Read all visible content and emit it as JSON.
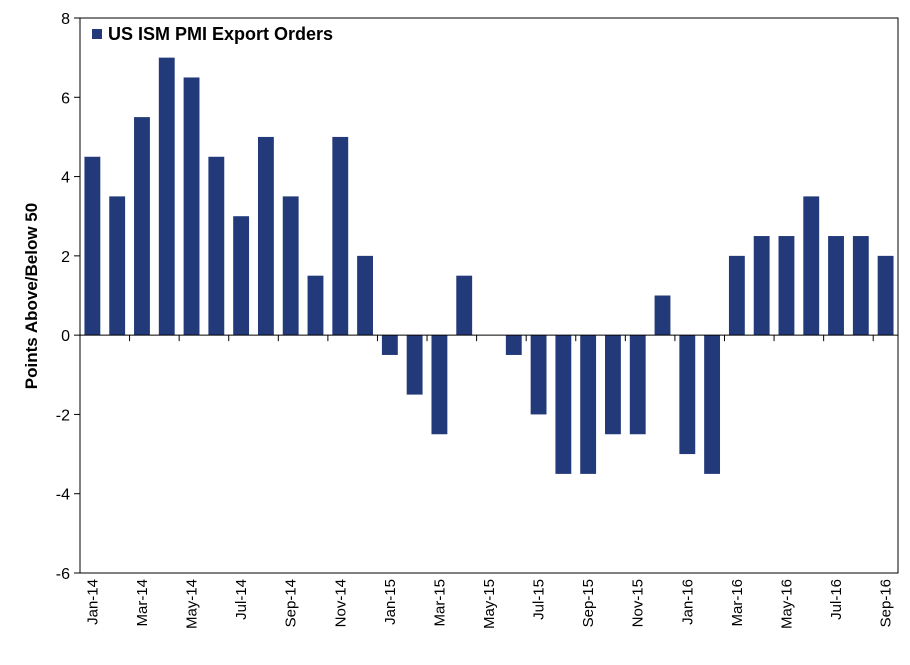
{
  "chart_data": {
    "type": "bar",
    "title": "",
    "xlabel": "",
    "ylabel": "Points Above/Below 50",
    "ylim": [
      -6,
      8
    ],
    "yticks": [
      -6,
      -4,
      -2,
      0,
      2,
      4,
      6,
      8
    ],
    "grid": false,
    "legend": {
      "position": "top-left"
    },
    "colors": {
      "bar": "#233a7a",
      "axis": "#000000"
    },
    "categories": [
      "Jan-14",
      "Feb-14",
      "Mar-14",
      "Apr-14",
      "May-14",
      "Jun-14",
      "Jul-14",
      "Aug-14",
      "Sep-14",
      "Oct-14",
      "Nov-14",
      "Dec-14",
      "Jan-15",
      "Feb-15",
      "Mar-15",
      "Apr-15",
      "May-15",
      "Jun-15",
      "Jul-15",
      "Aug-15",
      "Sep-15",
      "Oct-15",
      "Nov-15",
      "Dec-15",
      "Jan-16",
      "Feb-16",
      "Mar-16",
      "Apr-16",
      "May-16",
      "Jun-16",
      "Jul-16",
      "Aug-16",
      "Sep-16"
    ],
    "x_tick_labels": [
      "Jan-14",
      "Mar-14",
      "May-14",
      "Jul-14",
      "Sep-14",
      "Nov-14",
      "Jan-15",
      "Mar-15",
      "May-15",
      "Jul-15",
      "Sep-15",
      "Nov-15",
      "Jan-16",
      "Mar-16",
      "May-16",
      "Jul-16",
      "Sep-16"
    ],
    "series": [
      {
        "name": "US ISM PMI Export Orders",
        "values": [
          4.5,
          3.5,
          5.5,
          7.0,
          6.5,
          4.5,
          3.0,
          5.0,
          3.5,
          1.5,
          5.0,
          2.0,
          -0.5,
          -1.5,
          -2.5,
          1.5,
          0.0,
          -0.5,
          -2.0,
          -3.5,
          -3.5,
          -2.5,
          -2.5,
          1.0,
          -3.0,
          -3.5,
          2.0,
          2.5,
          2.5,
          3.5,
          2.5,
          2.5,
          2.0
        ]
      }
    ]
  }
}
